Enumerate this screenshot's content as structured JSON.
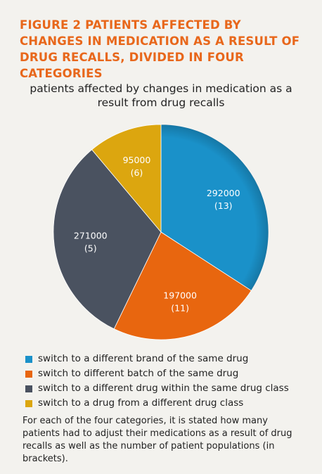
{
  "figure_title": "FIGURE 2 PATIENTS AFFECTED BY CHANGES IN MEDICATION AS A RESULT OF DRUG RECALLS, DIVIDED IN FOUR CATEGORIES",
  "chart_data": {
    "type": "pie",
    "title": "patients affected by changes in medication as a result from drug recalls",
    "slices": [
      {
        "label": "switch to a different brand of the same drug",
        "value": 292000,
        "populations": 13,
        "value_label": "292000",
        "populations_label": "(13)",
        "color": "#1a91c9"
      },
      {
        "label": "switch to different batch of the same drug",
        "value": 197000,
        "populations": 11,
        "value_label": "197000",
        "populations_label": "(11)",
        "color": "#e8660f"
      },
      {
        "label": "switch to a different drug within the same drug class",
        "value": 271000,
        "populations": 5,
        "value_label": "271000",
        "populations_label": "(5)",
        "color": "#4a5260"
      },
      {
        "label": "switch to a drug from a different drug class",
        "value": 95000,
        "populations": 6,
        "value_label": "95000",
        "populations_label": "(6)",
        "color": "#dca60f"
      }
    ],
    "legend_position": "bottom"
  },
  "note": "For each of the four categories, it is stated how many patients had to adjust their medications as a result of drug recalls as well as the number of patient populations (in brackets)."
}
